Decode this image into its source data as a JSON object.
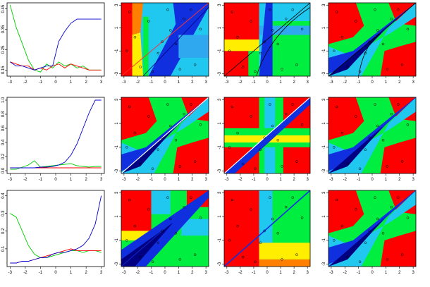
{
  "chart_data": [
    {
      "type": "line",
      "panel": "row1-curves",
      "xlim": [
        -3.2,
        3.2
      ],
      "ylim": [
        0.12,
        0.48
      ],
      "xticks": [
        "-3",
        "-2",
        "-1",
        "0",
        "1",
        "2",
        "3"
      ],
      "yticks": [
        0.15,
        0.25,
        0.35,
        0.45
      ],
      "ytick_labels": [
        "0.15",
        "0.25",
        "0.35",
        "0.45"
      ],
      "x": [
        -3,
        -2.6,
        -2.2,
        -1.8,
        -1.4,
        -1.0,
        -0.6,
        -0.2,
        0.2,
        0.6,
        1.0,
        1.4,
        1.8,
        2.2,
        2.6,
        3.0
      ],
      "series": [
        {
          "color": "#00cc00",
          "values": [
            0.47,
            0.36,
            0.28,
            0.2,
            0.15,
            0.14,
            0.18,
            0.16,
            0.19,
            0.17,
            0.18,
            0.16,
            0.17,
            0.15,
            0.15,
            0.15
          ]
        },
        {
          "color": "#ff0000",
          "values": [
            0.19,
            0.18,
            0.17,
            0.17,
            0.15,
            0.16,
            0.15,
            0.17,
            0.18,
            0.16,
            0.18,
            0.17,
            0.16,
            0.15,
            0.15,
            0.15
          ]
        },
        {
          "color": "#0000cc",
          "values": [
            0.19,
            0.17,
            0.17,
            0.16,
            0.15,
            0.16,
            0.17,
            0.17,
            0.29,
            0.34,
            0.38,
            0.4,
            0.4,
            0.4,
            0.4,
            0.4
          ]
        }
      ]
    },
    {
      "type": "line",
      "panel": "row2-curves",
      "xlim": [
        -3.2,
        3.2
      ],
      "ylim": [
        -0.04,
        1.04
      ],
      "xticks": [
        "-3",
        "-2",
        "-1",
        "0",
        "1",
        "2",
        "3"
      ],
      "yticks": [
        0,
        0.2,
        0.4,
        0.6,
        0.8,
        1.0
      ],
      "ytick_labels": [
        "0.0",
        "0.2",
        "0.4",
        "0.6",
        "0.8",
        "1.0"
      ],
      "x": [
        -3,
        -2.6,
        -2.2,
        -1.8,
        -1.4,
        -1.0,
        -0.6,
        -0.2,
        0.2,
        0.6,
        1.0,
        1.4,
        1.8,
        2.2,
        2.6,
        3.0
      ],
      "series": [
        {
          "color": "#00cc00",
          "values": [
            0.02,
            0.02,
            0.05,
            0.08,
            0.14,
            0.05,
            0.06,
            0.07,
            0.08,
            0.09,
            0.1,
            0.07,
            0.06,
            0.05,
            0.06,
            0.06
          ]
        },
        {
          "color": "#ff0000",
          "values": [
            0.04,
            0.04,
            0.04,
            0.04,
            0.04,
            0.04,
            0.04,
            0.04,
            0.04,
            0.04,
            0.04,
            0.04,
            0.04,
            0.04,
            0.04,
            0.04
          ]
        },
        {
          "color": "#0000cc",
          "values": [
            0.04,
            0.04,
            0.04,
            0.04,
            0.04,
            0.05,
            0.05,
            0.06,
            0.08,
            0.12,
            0.22,
            0.38,
            0.6,
            0.82,
            1.0,
            1.0
          ]
        }
      ]
    },
    {
      "type": "line",
      "panel": "row3-curves",
      "xlim": [
        -3.2,
        3.2
      ],
      "ylim": [
        0.0,
        0.43
      ],
      "xticks": [
        "-3",
        "-2",
        "-1",
        "0",
        "1",
        "2",
        "3"
      ],
      "yticks": [
        0.1,
        0.2,
        0.3,
        0.4
      ],
      "ytick_labels": [
        "0.1",
        "0.2",
        "0.3",
        "0.4"
      ],
      "x": [
        -3,
        -2.6,
        -2.2,
        -1.8,
        -1.4,
        -1.0,
        -0.6,
        -0.2,
        0.2,
        0.6,
        1.0,
        1.4,
        1.8,
        2.2,
        2.6,
        3.0
      ],
      "series": [
        {
          "color": "#00cc00",
          "values": [
            0.3,
            0.28,
            0.2,
            0.12,
            0.07,
            0.05,
            0.05,
            0.06,
            0.07,
            0.08,
            0.09,
            0.09,
            0.08,
            0.09,
            0.09,
            0.08
          ]
        },
        {
          "color": "#ff0000",
          "values": [
            0.02,
            0.02,
            0.03,
            0.03,
            0.04,
            0.05,
            0.06,
            0.07,
            0.08,
            0.09,
            0.1,
            0.09,
            0.09,
            0.09,
            0.09,
            0.09
          ]
        },
        {
          "color": "#0000cc",
          "values": [
            0.02,
            0.02,
            0.03,
            0.03,
            0.04,
            0.05,
            0.05,
            0.07,
            0.08,
            0.08,
            0.09,
            0.1,
            0.12,
            0.16,
            0.24,
            0.4
          ]
        }
      ]
    },
    {
      "type": "heatmap",
      "panel": "row1-map1",
      "xlim": [
        -3.2,
        3.2
      ],
      "ylim": [
        -3.2,
        3.2
      ],
      "xticks": [
        "-3",
        "-2",
        "-1",
        "0",
        "1",
        "2",
        "3"
      ],
      "yticks": [
        "-3",
        "-1",
        "1",
        "3"
      ]
    },
    {
      "type": "heatmap",
      "panel": "row1-map2",
      "xlim": [
        -3.2,
        3.2
      ],
      "ylim": [
        -3.2,
        3.2
      ],
      "xticks": [
        "-3",
        "-2",
        "-1",
        "0",
        "1",
        "2",
        "3"
      ],
      "yticks": [
        "-3",
        "-1",
        "1",
        "3"
      ]
    },
    {
      "type": "heatmap",
      "panel": "row1-map3",
      "xlim": [
        -3.2,
        3.2
      ],
      "ylim": [
        -3.2,
        3.2
      ],
      "xticks": [
        "-3",
        "-2",
        "-1",
        "0",
        "1",
        "2",
        "3"
      ],
      "yticks": [
        "-3",
        "-1",
        "1",
        "3"
      ]
    },
    {
      "type": "heatmap",
      "panel": "row2-map1",
      "xlim": [
        -3.2,
        3.2
      ],
      "ylim": [
        -3.2,
        3.2
      ],
      "xticks": [
        "-3",
        "-2",
        "-1",
        "0",
        "1",
        "2",
        "3"
      ],
      "yticks": [
        "-3",
        "-1",
        "1",
        "3"
      ]
    },
    {
      "type": "heatmap",
      "panel": "row2-map2",
      "xlim": [
        -3.2,
        3.2
      ],
      "ylim": [
        -3.2,
        3.2
      ],
      "xticks": [
        "-3",
        "-2",
        "-1",
        "0",
        "1",
        "2",
        "3"
      ],
      "yticks": [
        "-3",
        "-1",
        "1",
        "3"
      ]
    },
    {
      "type": "heatmap",
      "panel": "row2-map3",
      "xlim": [
        -3.2,
        3.2
      ],
      "ylim": [
        -3.2,
        3.2
      ],
      "xticks": [
        "-3",
        "-2",
        "-1",
        "0",
        "1",
        "2",
        "3"
      ],
      "yticks": [
        "-3",
        "-1",
        "1",
        "3"
      ]
    },
    {
      "type": "heatmap",
      "panel": "row3-map1",
      "xlim": [
        -3.2,
        3.2
      ],
      "ylim": [
        -3.2,
        3.2
      ],
      "xticks": [
        "-3",
        "-2",
        "-1",
        "0",
        "1",
        "2",
        "3"
      ],
      "yticks": [
        "-3",
        "-1",
        "1",
        "3"
      ]
    },
    {
      "type": "heatmap",
      "panel": "row3-map2",
      "xlim": [
        -3.2,
        3.2
      ],
      "ylim": [
        -3.2,
        3.2
      ],
      "xticks": [
        "-3",
        "-2",
        "-1",
        "0",
        "1",
        "2",
        "3"
      ],
      "yticks": [
        "-3",
        "-1",
        "1",
        "3"
      ]
    },
    {
      "type": "heatmap",
      "panel": "row3-map3",
      "xlim": [
        -3.2,
        3.2
      ],
      "ylim": [
        -3.2,
        3.2
      ],
      "xticks": [
        "-3",
        "-2",
        "-1",
        "0",
        "1",
        "2",
        "3"
      ],
      "yticks": [
        "-3",
        "-1",
        "1",
        "3"
      ]
    }
  ],
  "colors": {
    "red": "#ff0000",
    "orange": "#ff8000",
    "yellow": "#ffee00",
    "green": "#00ee40",
    "cyan": "#20c8f0",
    "blue": "#1030e0",
    "navy": "#000080"
  }
}
